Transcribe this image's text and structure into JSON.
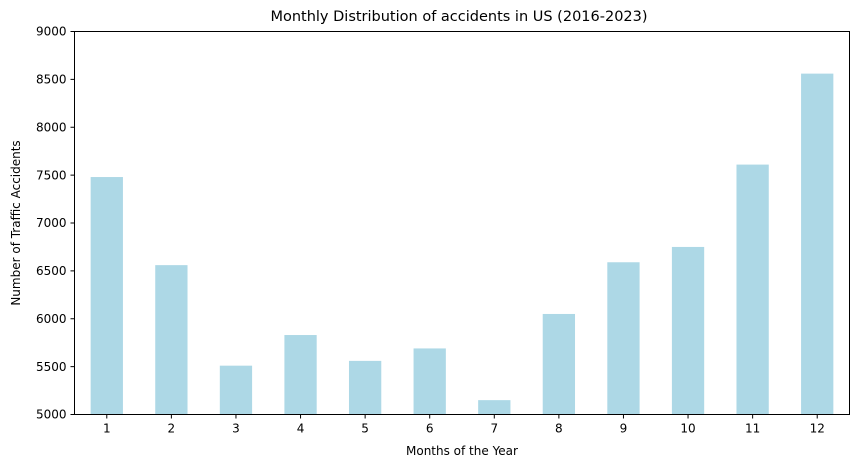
{
  "chart_data": {
    "type": "bar",
    "title": "Monthly Distribution of accidents in US (2016-2023)",
    "xlabel": "Months of the Year",
    "ylabel": "Number of Traffic Accidents",
    "categories": [
      "1",
      "2",
      "3",
      "4",
      "5",
      "6",
      "7",
      "8",
      "9",
      "10",
      "11",
      "12"
    ],
    "values": [
      7480,
      6560,
      5510,
      5830,
      5560,
      5690,
      5150,
      6050,
      6590,
      6750,
      7610,
      8560
    ],
    "ylim": [
      5000,
      9000
    ],
    "yticks": [
      "5000",
      "5500",
      "6000",
      "6500",
      "7000",
      "7500",
      "8000",
      "8500",
      "9000"
    ],
    "grid": false,
    "legend": "none",
    "colors": {
      "bar": "#add8e6",
      "axis": "#000000",
      "text": "#000000",
      "background": "#ffffff"
    }
  }
}
